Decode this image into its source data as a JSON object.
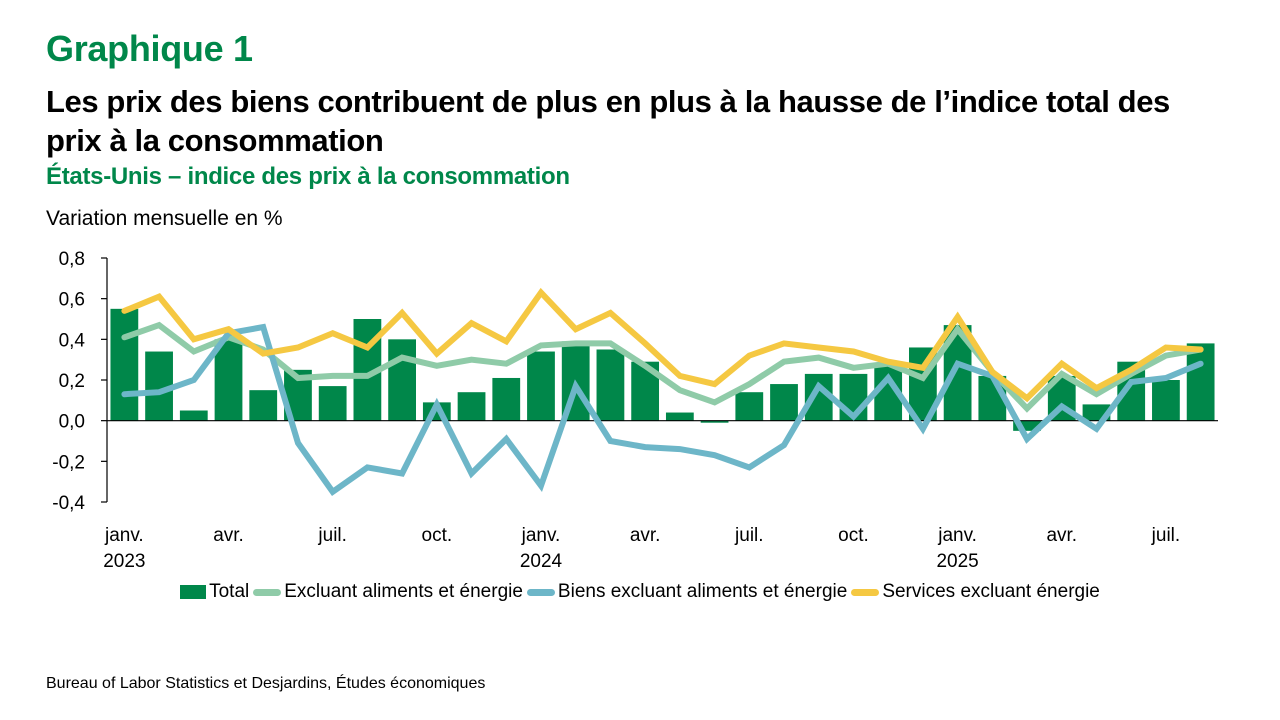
{
  "header": {
    "graph_label": "Graphique 1",
    "title": "Les prix des biens contribuent de plus en plus à la hausse de l’indice total des prix à la consommation",
    "subtitle": "États-Unis – indice des prix à la consommation",
    "unit_label": "Variation mensuelle en %"
  },
  "footer": {
    "source": "Bureau of Labor Statistics et Desjardins, Études économiques"
  },
  "colors": {
    "brand_green": "#00874a",
    "total": "#00874a",
    "core": "#8fcba8",
    "goods": "#6db6c8",
    "services": "#f5c842"
  },
  "chart_data": {
    "type": "bar+line",
    "title": "Les prix des biens contribuent de plus en plus à la hausse de l’indice total des prix à la consommation",
    "subtitle": "États-Unis – indice des prix à la consommation",
    "ylabel": "Variation mensuelle en %",
    "xlabel": "",
    "ylim": [
      -0.4,
      0.8
    ],
    "yticks": [
      -0.4,
      -0.2,
      0.0,
      0.2,
      0.4,
      0.6,
      0.8
    ],
    "ytick_labels": [
      "-0,4",
      "-0,2",
      "0,0",
      "0,2",
      "0,4",
      "0,6",
      "0,8"
    ],
    "grid": false,
    "legend_position": "bottom",
    "x": [
      "2023-01",
      "2023-02",
      "2023-03",
      "2023-04",
      "2023-05",
      "2023-06",
      "2023-07",
      "2023-08",
      "2023-09",
      "2023-10",
      "2023-11",
      "2023-12",
      "2024-01",
      "2024-02",
      "2024-03",
      "2024-04",
      "2024-05",
      "2024-06",
      "2024-07",
      "2024-08",
      "2024-09",
      "2024-10",
      "2024-11",
      "2024-12",
      "2025-01",
      "2025-02",
      "2025-03",
      "2025-04",
      "2025-05",
      "2025-06",
      "2025-07",
      "2025-08"
    ],
    "xtick_labels": [
      {
        "index": 0,
        "line1": "janv.",
        "line2": "2023"
      },
      {
        "index": 3,
        "line1": "avr.",
        "line2": ""
      },
      {
        "index": 6,
        "line1": "juil.",
        "line2": ""
      },
      {
        "index": 9,
        "line1": "oct.",
        "line2": ""
      },
      {
        "index": 12,
        "line1": "janv.",
        "line2": "2024"
      },
      {
        "index": 15,
        "line1": "avr.",
        "line2": ""
      },
      {
        "index": 18,
        "line1": "juil.",
        "line2": ""
      },
      {
        "index": 21,
        "line1": "oct.",
        "line2": ""
      },
      {
        "index": 24,
        "line1": "janv.",
        "line2": "2025"
      },
      {
        "index": 27,
        "line1": "avr.",
        "line2": ""
      },
      {
        "index": 30,
        "line1": "juil.",
        "line2": ""
      }
    ],
    "series": [
      {
        "name": "Total",
        "kind": "bar",
        "color": "#00874a",
        "values": [
          0.55,
          0.34,
          0.05,
          0.4,
          0.15,
          0.25,
          0.17,
          0.5,
          0.4,
          0.09,
          0.14,
          0.21,
          0.34,
          0.39,
          0.35,
          0.29,
          0.04,
          -0.01,
          0.14,
          0.18,
          0.23,
          0.23,
          0.27,
          0.36,
          0.47,
          0.22,
          -0.05,
          0.22,
          0.08,
          0.29,
          0.2,
          0.38
        ]
      },
      {
        "name": "Excluant aliments et énergie",
        "kind": "line",
        "color": "#8fcba8",
        "values": [
          0.41,
          0.47,
          0.34,
          0.41,
          0.35,
          0.21,
          0.22,
          0.22,
          0.31,
          0.27,
          0.3,
          0.28,
          0.37,
          0.38,
          0.38,
          0.27,
          0.15,
          0.09,
          0.18,
          0.29,
          0.31,
          0.26,
          0.28,
          0.21,
          0.45,
          0.24,
          0.06,
          0.23,
          0.13,
          0.23,
          0.32,
          0.35
        ]
      },
      {
        "name": "Biens excluant aliments et énergie",
        "kind": "line",
        "color": "#6db6c8",
        "values": [
          0.13,
          0.14,
          0.2,
          0.43,
          0.46,
          -0.11,
          -0.35,
          -0.23,
          -0.26,
          0.08,
          -0.26,
          -0.09,
          -0.32,
          0.17,
          -0.1,
          -0.13,
          -0.14,
          -0.17,
          -0.23,
          -0.12,
          0.17,
          0.02,
          0.21,
          -0.04,
          0.28,
          0.22,
          -0.09,
          0.07,
          -0.04,
          0.19,
          0.21,
          0.28
        ]
      },
      {
        "name": "Services excluant énergie",
        "kind": "line",
        "color": "#f5c842",
        "values": [
          0.54,
          0.61,
          0.4,
          0.45,
          0.33,
          0.36,
          0.43,
          0.36,
          0.53,
          0.33,
          0.48,
          0.39,
          0.63,
          0.45,
          0.53,
          0.38,
          0.22,
          0.18,
          0.32,
          0.38,
          0.36,
          0.34,
          0.29,
          0.26,
          0.51,
          0.24,
          0.11,
          0.28,
          0.16,
          0.25,
          0.36,
          0.35
        ]
      }
    ]
  }
}
